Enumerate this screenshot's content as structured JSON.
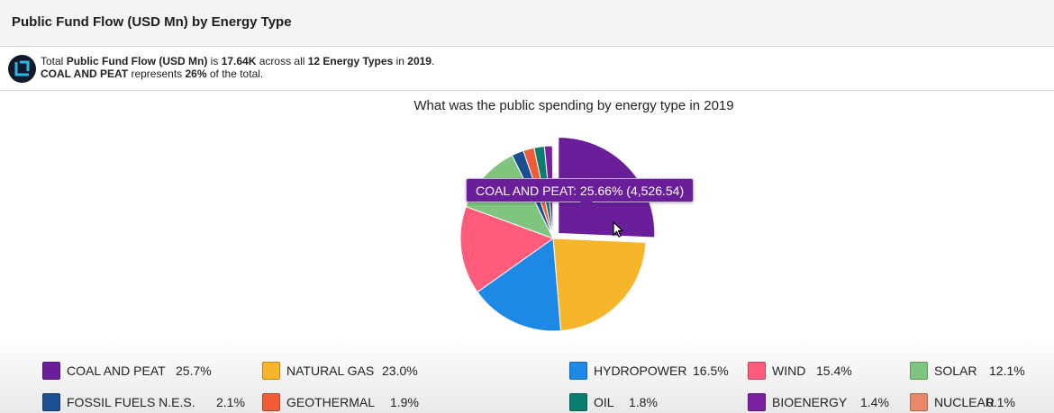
{
  "header": {
    "title": "Public Fund Flow (USD Mn) by Energy Type"
  },
  "summary": {
    "line1_pre": "Total ",
    "line1_metric": "Public Fund Flow (USD Mn)",
    "line1_is": " is ",
    "line1_total": "17.64K",
    "line1_across": " across all ",
    "line1_count": "12 Energy Types",
    "line1_in": " in ",
    "line1_year": "2019",
    "line1_end": ".",
    "line2_cat": "COAL AND PEAT",
    "line2_rep": " represents ",
    "line2_pct": "26%",
    "line2_end": " of the total."
  },
  "tooltip": {
    "text": "COAL AND PEAT: 25.66% (4,526.54)"
  },
  "chart_data": {
    "type": "pie",
    "title": "What was the public spending by energy type in 2019",
    "total": 17640,
    "highlighted": "COAL AND PEAT",
    "slices": [
      {
        "name": "COAL AND PEAT",
        "label": "25.7%",
        "value": 25.66,
        "color": "#6b1e9a"
      },
      {
        "name": "NATURAL GAS",
        "label": "23.0%",
        "value": 23.0,
        "color": "#f7b52c"
      },
      {
        "name": "HYDROPOWER",
        "label": "16.5%",
        "value": 16.5,
        "color": "#1e88e5"
      },
      {
        "name": "WIND",
        "label": "15.4%",
        "value": 15.4,
        "color": "#ff5c7c"
      },
      {
        "name": "SOLAR",
        "label": "12.1%",
        "value": 12.1,
        "color": "#80c57f"
      },
      {
        "name": "FOSSIL FUELS N.E.S.",
        "label": "2.1%",
        "value": 2.1,
        "color": "#1c4f91"
      },
      {
        "name": "GEOTHERMAL",
        "label": "1.9%",
        "value": 1.9,
        "color": "#ef5c35"
      },
      {
        "name": "OIL",
        "label": "1.8%",
        "value": 1.8,
        "color": "#0b7d6e"
      },
      {
        "name": "BIOENERGY",
        "label": "1.4%",
        "value": 1.4,
        "color": "#7a1fa2"
      },
      {
        "name": "NUCLEAR",
        "label": "0.1%",
        "value": 0.1,
        "color": "#e8876a"
      }
    ]
  }
}
